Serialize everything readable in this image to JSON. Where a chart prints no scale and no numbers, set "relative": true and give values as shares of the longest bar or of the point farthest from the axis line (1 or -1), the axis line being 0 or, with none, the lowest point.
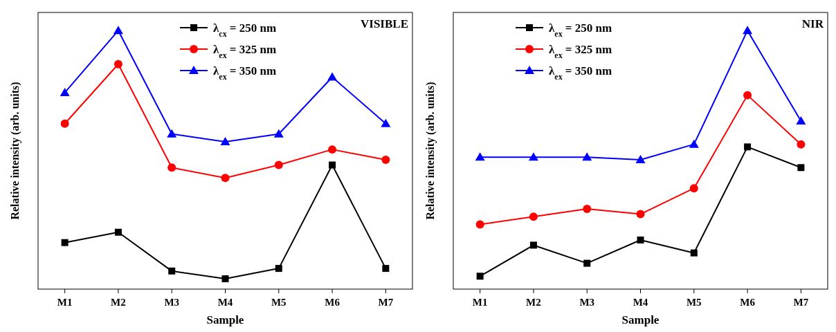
{
  "chart_data": [
    {
      "type": "line",
      "title": "VISIBLE",
      "xlabel": "Sample",
      "ylabel": "Relative intensity (arb. units)",
      "categories": [
        "M1",
        "M2",
        "M3",
        "M4",
        "M5",
        "M6",
        "M7"
      ],
      "relative": true,
      "legend": "top",
      "series": [
        {
          "name": "λ$_{cx}$ = 250 nm",
          "color": "#000000",
          "marker": "square",
          "values": [
            0.18,
            0.22,
            0.07,
            0.04,
            0.08,
            0.48,
            0.08
          ]
        },
        {
          "name": "λ$_{ex}$ = 325 nm",
          "color": "#ff0000",
          "marker": "circle",
          "values": [
            0.64,
            0.87,
            0.47,
            0.43,
            0.48,
            0.54,
            0.5
          ]
        },
        {
          "name": "λ$_{ex}$ = 350 nm",
          "color": "#0000ff",
          "marker": "triangle",
          "values": [
            0.76,
            1,
            0.6,
            0.57,
            0.6,
            0.82,
            0.64
          ]
        }
      ]
    },
    {
      "type": "line",
      "title": "NIR",
      "xlabel": "Sample",
      "ylabel": "Relative intensity (arb. units)",
      "categories": [
        "M1",
        "M2",
        "M3",
        "M4",
        "M5",
        "M6",
        "M7"
      ],
      "relative": true,
      "legend": "top left",
      "series": [
        {
          "name": "λ$_{ex}$ = 250 nm",
          "color": "#000000",
          "marker": "square",
          "values": [
            0.05,
            0.17,
            0.1,
            0.19,
            0.14,
            0.55,
            0.47
          ]
        },
        {
          "name": "λ$_{ex}$ = 325 nm",
          "color": "#ff0000",
          "marker": "circle",
          "values": [
            0.25,
            0.28,
            0.31,
            0.29,
            0.39,
            0.75,
            0.56
          ]
        },
        {
          "name": "λ$_{ex}$ = 350 nm",
          "color": "#0000ff",
          "marker": "triangle",
          "values": [
            0.51,
            0.51,
            0.51,
            0.5,
            0.56,
            1,
            0.65
          ]
        }
      ]
    }
  ]
}
